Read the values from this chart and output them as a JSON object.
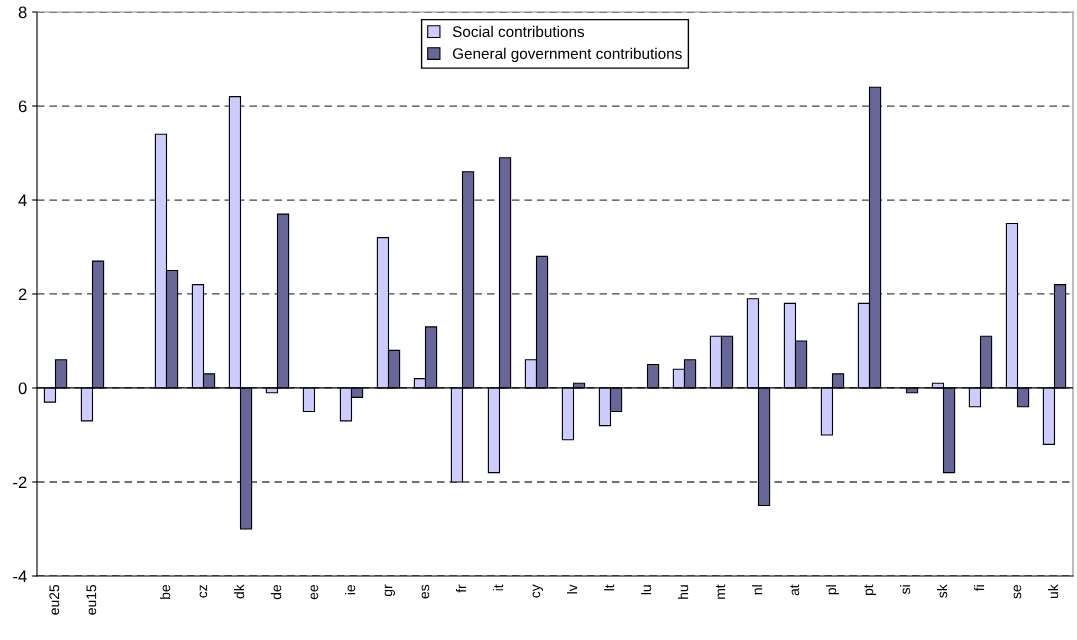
{
  "chart_data": {
    "type": "bar",
    "categories": [
      "eu25",
      "eu15",
      null,
      "be",
      "cz",
      "dk",
      "de",
      "ee",
      "ie",
      "gr",
      "es",
      "fr",
      "it",
      "cy",
      "lv",
      "lt",
      "lu",
      "hu",
      "mt",
      "nl",
      "at",
      "pl",
      "pt",
      "si",
      "sk",
      "fi",
      "se",
      "uk"
    ],
    "series": [
      {
        "name": "Social contributions",
        "color": "#ccccff",
        "values": [
          -0.3,
          -0.7,
          null,
          5.4,
          2.2,
          6.2,
          -0.1,
          -0.5,
          -0.7,
          3.2,
          0.2,
          -2.0,
          -1.8,
          0.6,
          -1.1,
          -0.8,
          null,
          0.4,
          1.1,
          1.9,
          1.8,
          -1.0,
          1.8,
          null,
          0.1,
          -0.4,
          3.5,
          -1.2
        ]
      },
      {
        "name": "General government contributions",
        "color": "#666699",
        "values": [
          0.6,
          2.7,
          null,
          2.5,
          0.3,
          -3.0,
          3.7,
          null,
          -0.2,
          0.8,
          1.3,
          4.6,
          4.9,
          2.8,
          0.1,
          -0.5,
          0.5,
          0.6,
          1.1,
          -2.5,
          1.0,
          0.3,
          6.4,
          -0.1,
          -1.8,
          1.1,
          -0.4,
          2.2
        ]
      }
    ],
    "ylim": [
      -4,
      8
    ],
    "yticks": [
      -4,
      -2,
      0,
      2,
      4,
      6,
      8
    ],
    "grid": "y",
    "legend": "top"
  }
}
